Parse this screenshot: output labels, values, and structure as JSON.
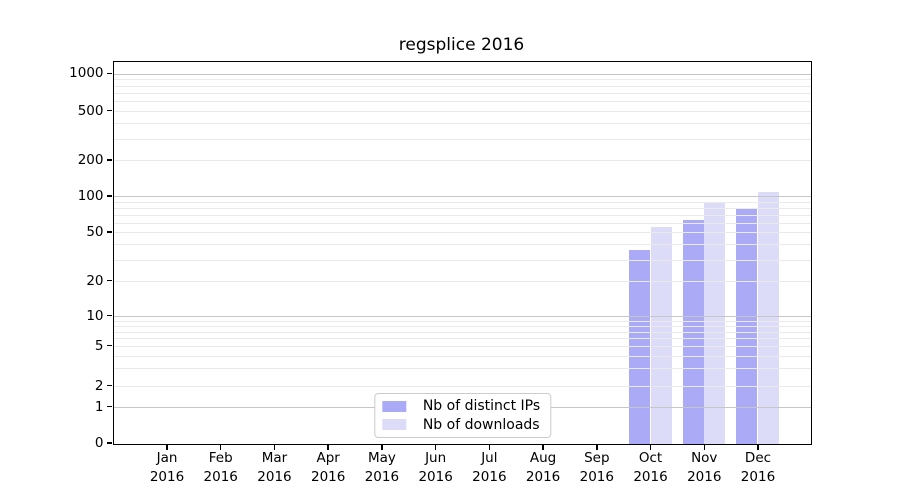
{
  "title": "regsplice 2016",
  "chart_data": {
    "type": "bar",
    "title": "regsplice 2016",
    "categories": [
      "Jan",
      "Feb",
      "Mar",
      "Apr",
      "May",
      "Jun",
      "Jul",
      "Aug",
      "Sep",
      "Oct",
      "Nov",
      "Dec"
    ],
    "category_year": "2016",
    "series": [
      {
        "name": "Nb of distinct IPs",
        "color": "#abaaf7",
        "values": [
          0,
          0,
          0,
          0,
          0,
          0,
          0,
          0,
          0,
          36,
          64,
          80
        ]
      },
      {
        "name": "Nb of downloads",
        "color": "#dcdcf8",
        "values": [
          0,
          0,
          0,
          0,
          0,
          0,
          0,
          0,
          0,
          56,
          91,
          110
        ]
      }
    ],
    "xlabel": "",
    "ylabel": "",
    "yscale": "symlog",
    "ytick_values": [
      0,
      1,
      2,
      5,
      10,
      20,
      50,
      100,
      200,
      500,
      1000
    ],
    "ytick_labels": [
      "0",
      "1",
      "2",
      "5",
      "10",
      "20",
      "50",
      "100",
      "200",
      "500",
      "1000"
    ],
    "ylim": [
      0,
      1260
    ],
    "grid": "horizontal, log minor gridlines, drawn over bars",
    "legend_position": "lower center"
  },
  "colors": {
    "series_distinct_ips": "#abaaf7",
    "series_downloads": "#dcdcf8",
    "grid_major": "#c6c6c6",
    "grid_minor": "#eaeaea",
    "spine": "#000000",
    "legend_border": "#cccccc",
    "background": "#ffffff",
    "text": "#000000"
  }
}
